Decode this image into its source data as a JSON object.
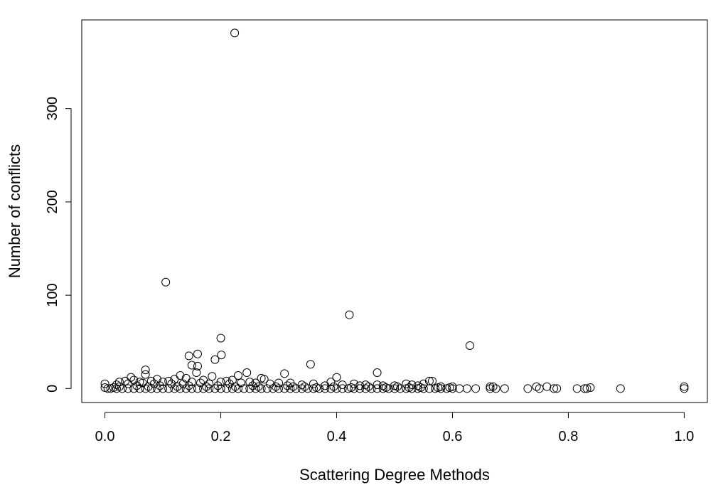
{
  "chart_data": {
    "type": "scatter",
    "title": "",
    "xlabel": "Scattering Degree Methods",
    "ylabel": "Number of conflicts",
    "xlim": [
      -0.04,
      1.04
    ],
    "ylim": [
      -15,
      395
    ],
    "x_ticks": [
      0.0,
      0.2,
      0.4,
      0.6,
      0.8,
      1.0
    ],
    "x_tick_labels": [
      "0.0",
      "0.2",
      "0.4",
      "0.6",
      "0.8",
      "1.0"
    ],
    "y_ticks": [
      0,
      100,
      200,
      300
    ],
    "y_tick_labels": [
      "0",
      "100",
      "200",
      "300"
    ],
    "grid": false,
    "marker": "open-circle",
    "points": [
      [
        0.224,
        381
      ],
      [
        0.105,
        114
      ],
      [
        0.422,
        79
      ],
      [
        0.2,
        54
      ],
      [
        0.63,
        46
      ],
      [
        0.16,
        37
      ],
      [
        0.145,
        35
      ],
      [
        0.201,
        36
      ],
      [
        0.19,
        31
      ],
      [
        0.355,
        26
      ],
      [
        0.15,
        25
      ],
      [
        0.16,
        24
      ],
      [
        0.07,
        20
      ],
      [
        0.47,
        17
      ],
      [
        0.158,
        17
      ],
      [
        0.245,
        17
      ],
      [
        0.31,
        16
      ],
      [
        0.07,
        15
      ],
      [
        0.13,
        14
      ],
      [
        0.23,
        14
      ],
      [
        0.185,
        13
      ],
      [
        0.4,
        12
      ],
      [
        0.045,
        12
      ],
      [
        0.09,
        10
      ],
      [
        0.12,
        10
      ],
      [
        0.14,
        11
      ],
      [
        0.27,
        11
      ],
      [
        0.275,
        10
      ],
      [
        0.22,
        9
      ],
      [
        0.05,
        9
      ],
      [
        0.17,
        9
      ],
      [
        0.21,
        8
      ],
      [
        0.08,
        8
      ],
      [
        0.11,
        8
      ],
      [
        0.025,
        7
      ],
      [
        0.035,
        8
      ],
      [
        0.06,
        7
      ],
      [
        0.1,
        7
      ],
      [
        0.15,
        7
      ],
      [
        0.2,
        7
      ],
      [
        0.25,
        7
      ],
      [
        0.26,
        6
      ],
      [
        0.3,
        6
      ],
      [
        0.32,
        6
      ],
      [
        0.39,
        7
      ],
      [
        0.36,
        5
      ],
      [
        0.43,
        5
      ],
      [
        0.45,
        4
      ],
      [
        0.47,
        4
      ],
      [
        0.52,
        5
      ],
      [
        0.55,
        5
      ],
      [
        0.56,
        8
      ],
      [
        0.565,
        8
      ],
      [
        0.0,
        5
      ],
      [
        0.02,
        4
      ],
      [
        0.04,
        5
      ],
      [
        0.065,
        6
      ],
      [
        0.085,
        5
      ],
      [
        0.115,
        5
      ],
      [
        0.135,
        5
      ],
      [
        0.165,
        6
      ],
      [
        0.18,
        5
      ],
      [
        0.215,
        5
      ],
      [
        0.235,
        6
      ],
      [
        0.285,
        5
      ],
      [
        0.34,
        4
      ],
      [
        0.38,
        3
      ],
      [
        0.41,
        4
      ],
      [
        0.44,
        3
      ],
      [
        0.48,
        3
      ],
      [
        0.5,
        3
      ],
      [
        0.53,
        4
      ],
      [
        0.54,
        3
      ],
      [
        0.58,
        2
      ],
      [
        0.6,
        2
      ],
      [
        0.665,
        2
      ],
      [
        0.67,
        2
      ],
      [
        0.745,
        2
      ],
      [
        0.763,
        2
      ],
      [
        0.838,
        1
      ],
      [
        1.0,
        2
      ],
      [
        0.0,
        1
      ],
      [
        0.005,
        0
      ],
      [
        0.01,
        0
      ],
      [
        0.015,
        1
      ],
      [
        0.02,
        0
      ],
      [
        0.03,
        0
      ],
      [
        0.04,
        0
      ],
      [
        0.05,
        0
      ],
      [
        0.06,
        0
      ],
      [
        0.07,
        0
      ],
      [
        0.08,
        0
      ],
      [
        0.09,
        0
      ],
      [
        0.1,
        0
      ],
      [
        0.11,
        0
      ],
      [
        0.12,
        0
      ],
      [
        0.13,
        0
      ],
      [
        0.14,
        0
      ],
      [
        0.15,
        0
      ],
      [
        0.16,
        0
      ],
      [
        0.17,
        0
      ],
      [
        0.18,
        0
      ],
      [
        0.19,
        0
      ],
      [
        0.2,
        0
      ],
      [
        0.21,
        0
      ],
      [
        0.22,
        0
      ],
      [
        0.23,
        0
      ],
      [
        0.24,
        0
      ],
      [
        0.25,
        0
      ],
      [
        0.26,
        0
      ],
      [
        0.27,
        0
      ],
      [
        0.28,
        0
      ],
      [
        0.29,
        0
      ],
      [
        0.3,
        0
      ],
      [
        0.31,
        0
      ],
      [
        0.32,
        0
      ],
      [
        0.33,
        0
      ],
      [
        0.34,
        0
      ],
      [
        0.35,
        0
      ],
      [
        0.36,
        0
      ],
      [
        0.37,
        0
      ],
      [
        0.38,
        0
      ],
      [
        0.39,
        0
      ],
      [
        0.4,
        0
      ],
      [
        0.41,
        0
      ],
      [
        0.42,
        0
      ],
      [
        0.43,
        0
      ],
      [
        0.44,
        0
      ],
      [
        0.45,
        0
      ],
      [
        0.46,
        0
      ],
      [
        0.47,
        0
      ],
      [
        0.48,
        0
      ],
      [
        0.49,
        0
      ],
      [
        0.5,
        0
      ],
      [
        0.51,
        0
      ],
      [
        0.52,
        0
      ],
      [
        0.53,
        0
      ],
      [
        0.54,
        0
      ],
      [
        0.55,
        0
      ],
      [
        0.56,
        0
      ],
      [
        0.57,
        0
      ],
      [
        0.58,
        0
      ],
      [
        0.59,
        0
      ],
      [
        0.6,
        0
      ],
      [
        0.612,
        0
      ],
      [
        0.625,
        0
      ],
      [
        0.64,
        0
      ],
      [
        0.665,
        0
      ],
      [
        0.675,
        0
      ],
      [
        0.69,
        0
      ],
      [
        0.73,
        0
      ],
      [
        0.75,
        0
      ],
      [
        0.775,
        0
      ],
      [
        0.78,
        0
      ],
      [
        0.815,
        0
      ],
      [
        0.828,
        0
      ],
      [
        0.832,
        0
      ],
      [
        0.89,
        0
      ],
      [
        1.0,
        0
      ],
      [
        0.025,
        2
      ],
      [
        0.055,
        3
      ],
      [
        0.075,
        2
      ],
      [
        0.095,
        3
      ],
      [
        0.125,
        2
      ],
      [
        0.145,
        3
      ],
      [
        0.175,
        2
      ],
      [
        0.195,
        3
      ],
      [
        0.225,
        2
      ],
      [
        0.255,
        3
      ],
      [
        0.265,
        2
      ],
      [
        0.295,
        2
      ],
      [
        0.315,
        3
      ],
      [
        0.325,
        2
      ],
      [
        0.345,
        2
      ],
      [
        0.365,
        1
      ],
      [
        0.395,
        2
      ],
      [
        0.425,
        1
      ],
      [
        0.455,
        2
      ],
      [
        0.485,
        1
      ],
      [
        0.505,
        2
      ],
      [
        0.525,
        1
      ],
      [
        0.545,
        1
      ],
      [
        0.575,
        1
      ],
      [
        0.595,
        1
      ]
    ]
  }
}
